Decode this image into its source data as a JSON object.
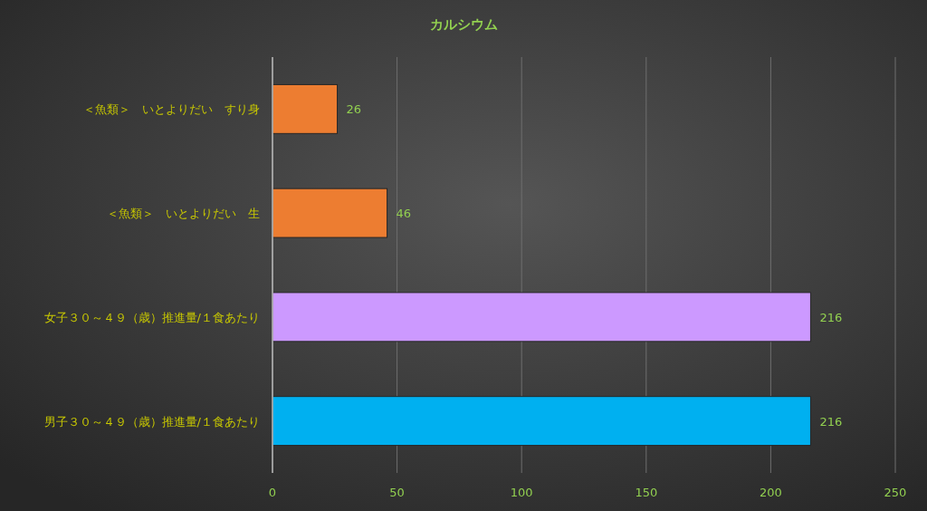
{
  "chart_data": {
    "type": "bar",
    "orientation": "horizontal",
    "title": "カルシウム",
    "categories": [
      "＜魚類＞　いとよりだい　すり身",
      "＜魚類＞　いとよりだい　生",
      "女子３０～４９（歳）推進量/１食あたり",
      "男子３０～４９（歳）推進量/１食あたり"
    ],
    "values": [
      26,
      46,
      216,
      216
    ],
    "colors": [
      "#ed7d31",
      "#ed7d31",
      "#cc99ff",
      "#00b0f0"
    ],
    "xlim": [
      0,
      250
    ],
    "xticks": [
      0,
      50,
      100,
      150,
      200,
      250
    ],
    "grid": "x",
    "data_labels": true
  }
}
